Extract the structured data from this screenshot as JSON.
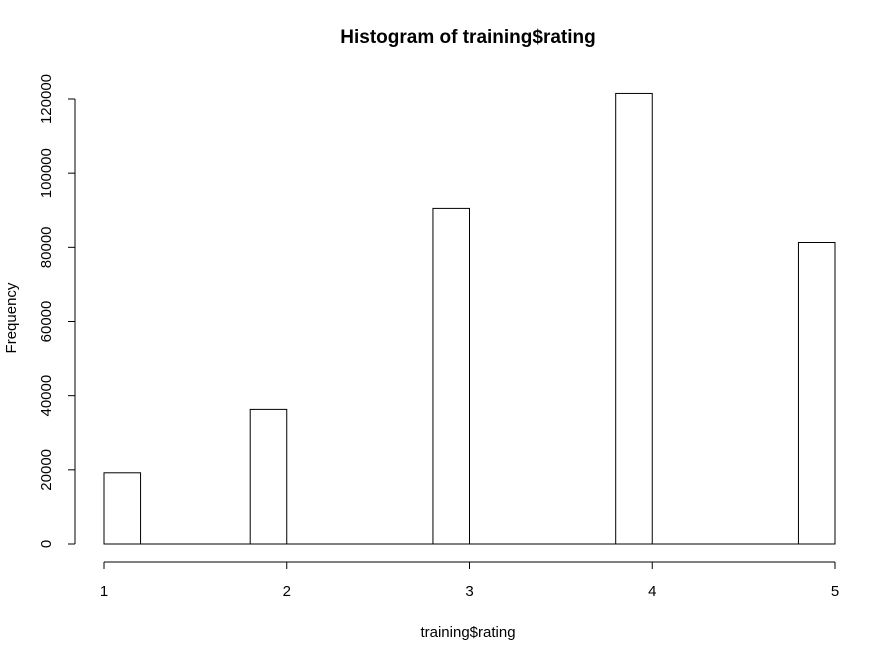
{
  "chart_data": {
    "type": "bar",
    "title": "Histogram of training$rating",
    "xlabel": "training$rating",
    "ylabel": "Frequency",
    "x_ticks": [
      "1",
      "2",
      "3",
      "4",
      "5"
    ],
    "y_ticks": [
      "0",
      "20000",
      "40000",
      "60000",
      "80000",
      "100000",
      "120000"
    ],
    "xlim": [
      1,
      5
    ],
    "ylim": [
      0,
      120000
    ],
    "bins": [
      {
        "from": 1.0,
        "to": 1.2,
        "count": 19200
      },
      {
        "from": 1.2,
        "to": 1.4,
        "count": 0
      },
      {
        "from": 1.4,
        "to": 1.6,
        "count": 0
      },
      {
        "from": 1.6,
        "to": 1.8,
        "count": 0
      },
      {
        "from": 1.8,
        "to": 2.0,
        "count": 36300
      },
      {
        "from": 2.0,
        "to": 2.2,
        "count": 0
      },
      {
        "from": 2.2,
        "to": 2.4,
        "count": 0
      },
      {
        "from": 2.4,
        "to": 2.6,
        "count": 0
      },
      {
        "from": 2.6,
        "to": 2.8,
        "count": 0
      },
      {
        "from": 2.8,
        "to": 3.0,
        "count": 90500
      },
      {
        "from": 3.0,
        "to": 3.2,
        "count": 0
      },
      {
        "from": 3.2,
        "to": 3.4,
        "count": 0
      },
      {
        "from": 3.4,
        "to": 3.6,
        "count": 0
      },
      {
        "from": 3.6,
        "to": 3.8,
        "count": 0
      },
      {
        "from": 3.8,
        "to": 4.0,
        "count": 121500
      },
      {
        "from": 4.0,
        "to": 4.2,
        "count": 0
      },
      {
        "from": 4.2,
        "to": 4.4,
        "count": 0
      },
      {
        "from": 4.4,
        "to": 4.6,
        "count": 0
      },
      {
        "from": 4.6,
        "to": 4.8,
        "count": 0
      },
      {
        "from": 4.8,
        "to": 5.0,
        "count": 81300
      }
    ],
    "grid": false,
    "legend": "none"
  }
}
